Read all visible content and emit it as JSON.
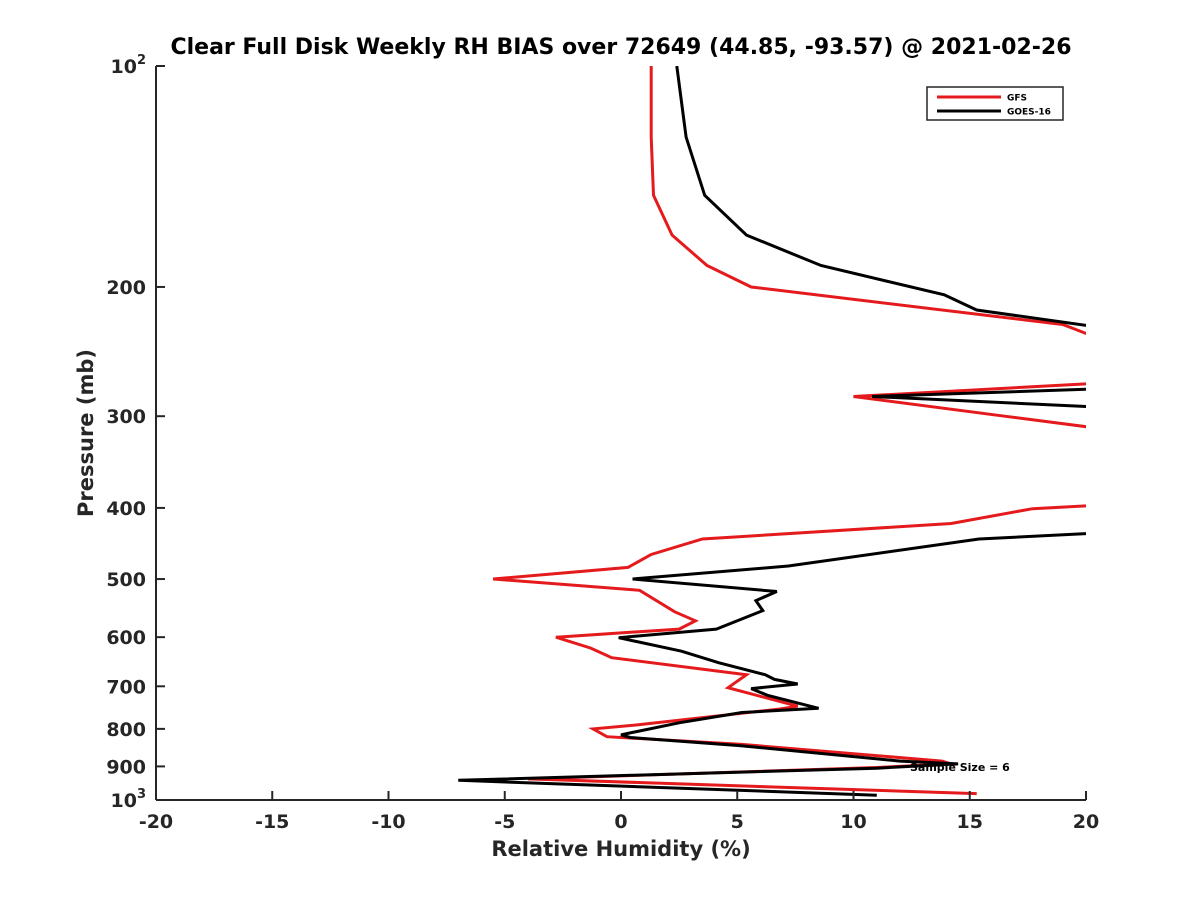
{
  "chart_data": {
    "type": "line",
    "title": "Clear Full Disk Weekly RH BIAS over 72649 (44.85, -93.57) @ 2021-02-26",
    "xlabel": "Relative Humidity (%)",
    "ylabel": "Pressure (mb)",
    "xlim": [
      -20,
      20
    ],
    "ylim": [
      100,
      1000
    ],
    "y_scale": "log",
    "y_reversed": true,
    "grid": false,
    "x_ticks": [
      {
        "value": -20,
        "label": "-20"
      },
      {
        "value": -15,
        "label": "-15"
      },
      {
        "value": -10,
        "label": "-10"
      },
      {
        "value": -5,
        "label": "-5"
      },
      {
        "value": 0,
        "label": "0"
      },
      {
        "value": 5,
        "label": "5"
      },
      {
        "value": 10,
        "label": "10"
      },
      {
        "value": 15,
        "label": "15"
      },
      {
        "value": 20,
        "label": "20"
      }
    ],
    "y_ticks": [
      {
        "value": 100,
        "label": "10",
        "exp": "2"
      },
      {
        "value": 200,
        "label": "200",
        "exp": ""
      },
      {
        "value": 300,
        "label": "300",
        "exp": ""
      },
      {
        "value": 400,
        "label": "400",
        "exp": ""
      },
      {
        "value": 500,
        "label": "500",
        "exp": ""
      },
      {
        "value": 600,
        "label": "600",
        "exp": ""
      },
      {
        "value": 700,
        "label": "700",
        "exp": ""
      },
      {
        "value": 800,
        "label": "800",
        "exp": ""
      },
      {
        "value": 900,
        "label": "900",
        "exp": ""
      },
      {
        "value": 1000,
        "label": "10",
        "exp": "3"
      }
    ],
    "legend": {
      "location": "top-right",
      "entries": [
        {
          "name": "GFS",
          "color": "#e41a1c"
        },
        {
          "name": "GOES-16",
          "color": "#000000"
        }
      ]
    },
    "annotation": {
      "text": "Sample Size = 6",
      "x": 12.5,
      "y": 900
    },
    "series": [
      {
        "name": "GFS",
        "color": "#e41a1c",
        "points": [
          [
            1.3,
            100
          ],
          [
            1.3,
            125
          ],
          [
            1.4,
            150
          ],
          [
            2.2,
            170
          ],
          [
            3.7,
            187
          ],
          [
            5.6,
            200
          ],
          [
            19.0,
            225
          ],
          [
            21,
            238
          ],
          [
            null,
            null
          ],
          [
            21,
            270
          ],
          [
            10.0,
            282
          ],
          [
            16.5,
            300
          ],
          [
            21,
            313
          ],
          [
            null,
            null
          ],
          [
            21,
            396
          ],
          [
            17.7,
            401
          ],
          [
            14.2,
            420
          ],
          [
            3.5,
            441
          ],
          [
            1.3,
            463
          ],
          [
            0.3,
            482
          ],
          [
            -5.5,
            500
          ],
          [
            0.8,
            518
          ],
          [
            2.3,
            554
          ],
          [
            3.2,
            570
          ],
          [
            2.5,
            585
          ],
          [
            -2.8,
            600
          ],
          [
            -1.3,
            621
          ],
          [
            -0.4,
            640
          ],
          [
            5.4,
            675
          ],
          [
            4.6,
            703
          ],
          [
            7.6,
            745
          ],
          [
            6.8,
            752
          ],
          [
            0.7,
            790
          ],
          [
            -1.2,
            800
          ],
          [
            -0.6,
            820
          ],
          [
            5.2,
            840
          ],
          [
            13.8,
            885
          ],
          [
            14.2,
            893
          ],
          [
            11.0,
            903
          ],
          [
            -4.0,
            936
          ],
          [
            15.3,
            980
          ]
        ]
      },
      {
        "name": "GOES-16",
        "color": "#000000",
        "points": [
          [
            2.4,
            100
          ],
          [
            2.8,
            125
          ],
          [
            3.6,
            150
          ],
          [
            5.4,
            170
          ],
          [
            8.6,
            187
          ],
          [
            13.9,
            205
          ],
          [
            15.3,
            215
          ],
          [
            21,
            228
          ],
          [
            null,
            null
          ],
          [
            21,
            275
          ],
          [
            10.8,
            282
          ],
          [
            21,
            292
          ],
          [
            null,
            null
          ],
          [
            21,
            432
          ],
          [
            15.4,
            441
          ],
          [
            7.2,
            480
          ],
          [
            0.5,
            500
          ],
          [
            6.7,
            520
          ],
          [
            5.8,
            535
          ],
          [
            6.1,
            552
          ],
          [
            4.1,
            585
          ],
          [
            -0.1,
            601
          ],
          [
            2.6,
            627
          ],
          [
            4.2,
            650
          ],
          [
            6.2,
            675
          ],
          [
            6.6,
            685
          ],
          [
            7.6,
            695
          ],
          [
            5.6,
            705
          ],
          [
            6.3,
            720
          ],
          [
            8.5,
            750
          ],
          [
            5.2,
            760
          ],
          [
            2.5,
            785
          ],
          [
            0.0,
            815
          ],
          [
            0.4,
            822
          ],
          [
            5.1,
            843
          ],
          [
            12.0,
            885
          ],
          [
            14.5,
            893
          ],
          [
            11.0,
            905
          ],
          [
            -7.0,
            940
          ],
          [
            11.0,
            985
          ]
        ]
      }
    ]
  }
}
